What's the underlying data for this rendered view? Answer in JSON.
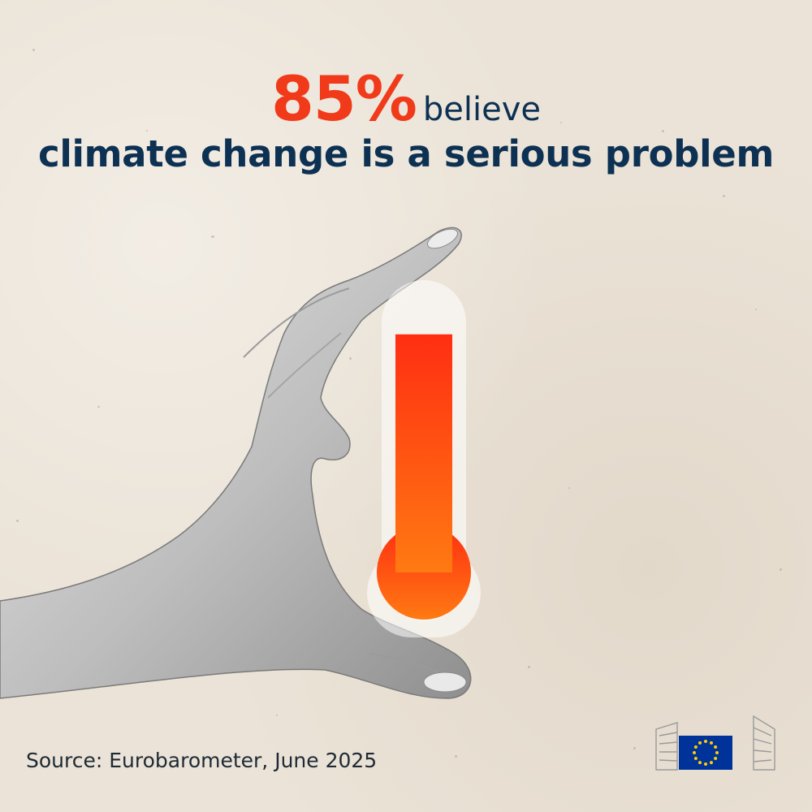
{
  "headline": {
    "stat_value": "85%",
    "stat_suffix": "believe",
    "statement": "climate change is a serious problem"
  },
  "thermometer": {
    "level_percent": 85,
    "fill_top_color": "#ff2e12",
    "fill_bottom_color": "#ff7a12"
  },
  "source": {
    "text": "Source: Eurobarometer, June 2025"
  },
  "logo": {
    "icon": "eu-flag-icon",
    "flag_color": "#003399",
    "star_color": "#ffcc00"
  },
  "colors": {
    "background": "#ebe3d7",
    "accent": "#f03a1a",
    "text_dark": "#0d3153"
  }
}
